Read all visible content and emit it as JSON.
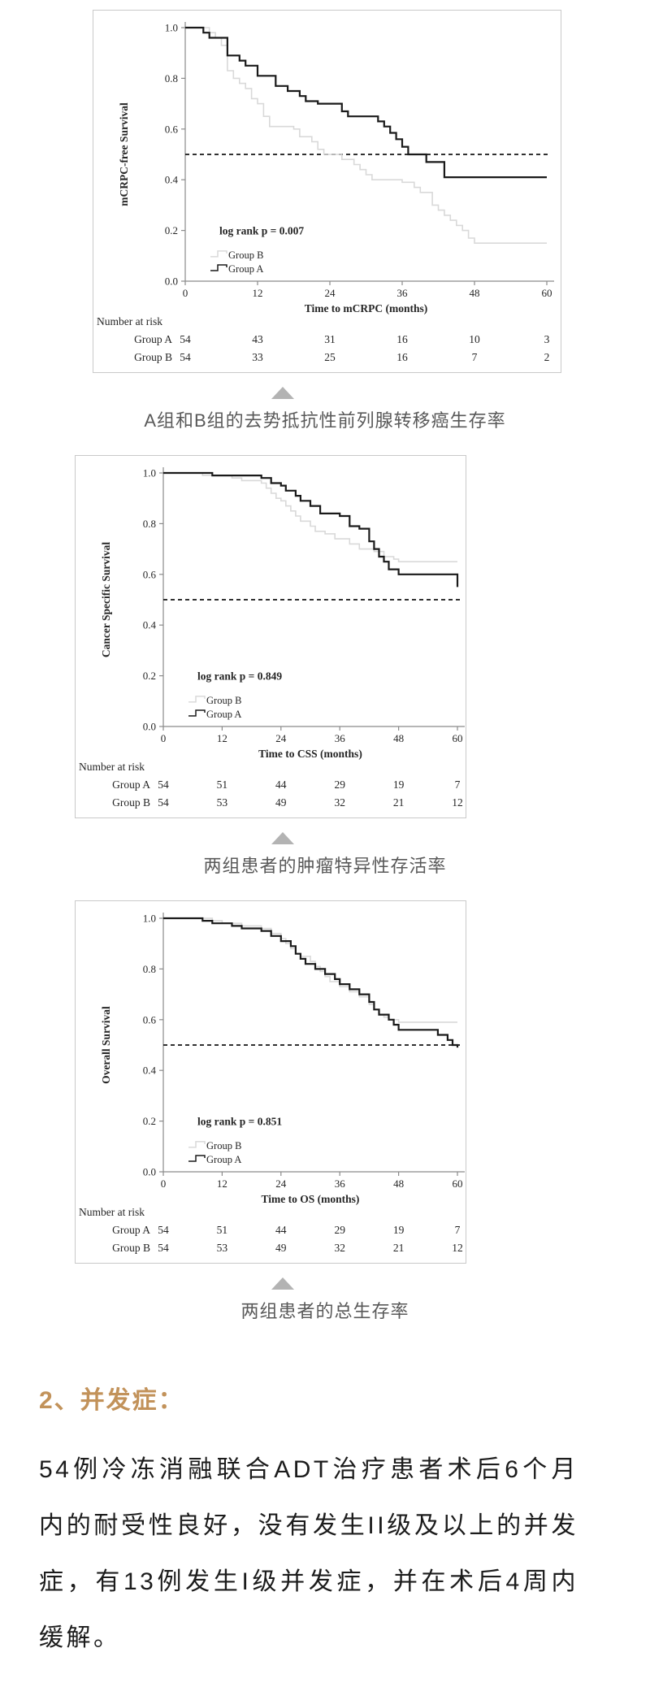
{
  "figures": [
    {
      "caption": "A组和B组的去势抵抗性前列腺转移癌生存率"
    },
    {
      "caption": "两组患者的肿瘤特异性存活率"
    },
    {
      "caption": "两组患者的总生存率"
    }
  ],
  "section": {
    "heading": "2、并发症：",
    "paragraph": "54例冷冻消融联合ADT治疗患者术后6个月内的耐受性良好，没有发生II级及以上的并发症，有13例发生I级并发症，并在术后4周内缓解。"
  },
  "colors": {
    "accent_heading": "#c2925a",
    "group_a_line": "#1a1a1a",
    "group_b_line": "#d9d9d9",
    "caption_text": "#595959",
    "triangle": "#b3b3b3",
    "figure_border": "#c9c9c9"
  },
  "chart_data": [
    {
      "type": "line",
      "variant": "kaplan-meier-step",
      "ylabel": "mCRPC-free Survival",
      "xlabel": "Time to mCRPC (months)",
      "annotation": "log rank p = 0.007",
      "xlim": [
        0,
        60
      ],
      "ylim": [
        0,
        1
      ],
      "xticks": [
        0,
        12,
        24,
        36,
        48,
        60
      ],
      "yticks": [
        "0.0",
        "0.2",
        "0.4",
        "0.6",
        "0.8",
        "1.0"
      ],
      "reference_line_y": 0.5,
      "grid": false,
      "legend_position": "lower-left",
      "legend": [
        {
          "label": "Group B",
          "color": "#d9d9d9"
        },
        {
          "label": "Group A",
          "color": "#1a1a1a"
        }
      ],
      "series": [
        {
          "name": "Group B",
          "color": "#d9d9d9",
          "step_points": [
            [
              0,
              1.0
            ],
            [
              4,
              0.98
            ],
            [
              5,
              0.96
            ],
            [
              6,
              0.93
            ],
            [
              7,
              0.83
            ],
            [
              8,
              0.8
            ],
            [
              9,
              0.78
            ],
            [
              10,
              0.76
            ],
            [
              11,
              0.72
            ],
            [
              12,
              0.7
            ],
            [
              13,
              0.65
            ],
            [
              14,
              0.61
            ],
            [
              18,
              0.6
            ],
            [
              19,
              0.57
            ],
            [
              21,
              0.55
            ],
            [
              22,
              0.52
            ],
            [
              23,
              0.5
            ],
            [
              26,
              0.48
            ],
            [
              28,
              0.46
            ],
            [
              29,
              0.44
            ],
            [
              30,
              0.42
            ],
            [
              31,
              0.4
            ],
            [
              36,
              0.39
            ],
            [
              38,
              0.37
            ],
            [
              39,
              0.35
            ],
            [
              41,
              0.3
            ],
            [
              42,
              0.28
            ],
            [
              43,
              0.26
            ],
            [
              44,
              0.24
            ],
            [
              45,
              0.22
            ],
            [
              46,
              0.2
            ],
            [
              47,
              0.17
            ],
            [
              48,
              0.15
            ],
            [
              60,
              0.15
            ]
          ]
        },
        {
          "name": "Group A",
          "color": "#1a1a1a",
          "step_points": [
            [
              0,
              1.0
            ],
            [
              3,
              0.98
            ],
            [
              4,
              0.96
            ],
            [
              7,
              0.89
            ],
            [
              9,
              0.87
            ],
            [
              10,
              0.85
            ],
            [
              12,
              0.81
            ],
            [
              15,
              0.77
            ],
            [
              17,
              0.75
            ],
            [
              19,
              0.73
            ],
            [
              20,
              0.71
            ],
            [
              22,
              0.7
            ],
            [
              26,
              0.67
            ],
            [
              27,
              0.65
            ],
            [
              32,
              0.63
            ],
            [
              33,
              0.61
            ],
            [
              34,
              0.585
            ],
            [
              35,
              0.56
            ],
            [
              36,
              0.53
            ],
            [
              37,
              0.5
            ],
            [
              40,
              0.47
            ],
            [
              43,
              0.41
            ],
            [
              60,
              0.41
            ]
          ]
        }
      ],
      "number_at_risk": {
        "label": "Number at risk",
        "rows": [
          {
            "name": "Group A",
            "values": [
              54,
              43,
              31,
              16,
              10,
              3
            ]
          },
          {
            "name": "Group B",
            "values": [
              54,
              33,
              25,
              16,
              7,
              2
            ]
          }
        ]
      }
    },
    {
      "type": "line",
      "variant": "kaplan-meier-step",
      "ylabel": "Cancer Specific Survival",
      "xlabel": "Time to CSS (months)",
      "annotation": "log rank p = 0.849",
      "xlim": [
        0,
        60
      ],
      "ylim": [
        0,
        1
      ],
      "xticks": [
        0,
        12,
        24,
        36,
        48,
        60
      ],
      "yticks": [
        "0.0",
        "0.2",
        "0.4",
        "0.6",
        "0.8",
        "1.0"
      ],
      "reference_line_y": 0.5,
      "grid": false,
      "legend_position": "lower-left",
      "legend": [
        {
          "label": "Group B",
          "color": "#d9d9d9"
        },
        {
          "label": "Group A",
          "color": "#1a1a1a"
        }
      ],
      "series": [
        {
          "name": "Group B",
          "color": "#d9d9d9",
          "step_points": [
            [
              0,
              1.0
            ],
            [
              8,
              0.99
            ],
            [
              14,
              0.98
            ],
            [
              16,
              0.97
            ],
            [
              20,
              0.96
            ],
            [
              21,
              0.94
            ],
            [
              22,
              0.92
            ],
            [
              23,
              0.9
            ],
            [
              24,
              0.89
            ],
            [
              25,
              0.87
            ],
            [
              26,
              0.85
            ],
            [
              27,
              0.83
            ],
            [
              28,
              0.81
            ],
            [
              30,
              0.79
            ],
            [
              31,
              0.77
            ],
            [
              33,
              0.76
            ],
            [
              35,
              0.74
            ],
            [
              38,
              0.72
            ],
            [
              40,
              0.7
            ],
            [
              43,
              0.69
            ],
            [
              45,
              0.67
            ],
            [
              47,
              0.66
            ],
            [
              48,
              0.65
            ],
            [
              60,
              0.65
            ]
          ]
        },
        {
          "name": "Group A",
          "color": "#1a1a1a",
          "step_points": [
            [
              0,
              1.0
            ],
            [
              10,
              0.99
            ],
            [
              20,
              0.98
            ],
            [
              22,
              0.96
            ],
            [
              24,
              0.95
            ],
            [
              25,
              0.93
            ],
            [
              27,
              0.91
            ],
            [
              28,
              0.89
            ],
            [
              30,
              0.87
            ],
            [
              32,
              0.84
            ],
            [
              36,
              0.83
            ],
            [
              38,
              0.79
            ],
            [
              40,
              0.78
            ],
            [
              42,
              0.73
            ],
            [
              43,
              0.7
            ],
            [
              44,
              0.67
            ],
            [
              45,
              0.65
            ],
            [
              46,
              0.62
            ],
            [
              48,
              0.6
            ],
            [
              59,
              0.6
            ],
            [
              60,
              0.55
            ]
          ]
        }
      ],
      "number_at_risk": {
        "label": "Number at risk",
        "rows": [
          {
            "name": "Group A",
            "values": [
              54,
              51,
              44,
              29,
              19,
              7
            ]
          },
          {
            "name": "Group B",
            "values": [
              54,
              53,
              49,
              32,
              21,
              12
            ]
          }
        ]
      }
    },
    {
      "type": "line",
      "variant": "kaplan-meier-step",
      "ylabel": "Overall Survival",
      "xlabel": "Time to OS (months)",
      "annotation": "log rank p = 0.851",
      "xlim": [
        0,
        60
      ],
      "ylim": [
        0,
        1
      ],
      "xticks": [
        0,
        12,
        24,
        36,
        48,
        60
      ],
      "yticks": [
        "0.0",
        "0.2",
        "0.4",
        "0.6",
        "0.8",
        "1.0"
      ],
      "reference_line_y": 0.5,
      "grid": false,
      "legend_position": "lower-left",
      "legend": [
        {
          "label": "Group B",
          "color": "#d9d9d9"
        },
        {
          "label": "Group A",
          "color": "#1a1a1a"
        }
      ],
      "series": [
        {
          "name": "Group B",
          "color": "#d9d9d9",
          "step_points": [
            [
              0,
              1.0
            ],
            [
              10,
              0.99
            ],
            [
              12,
              0.98
            ],
            [
              16,
              0.97
            ],
            [
              20,
              0.96
            ],
            [
              22,
              0.94
            ],
            [
              24,
              0.92
            ],
            [
              25,
              0.9
            ],
            [
              26,
              0.88
            ],
            [
              27,
              0.86
            ],
            [
              28,
              0.85
            ],
            [
              30,
              0.83
            ],
            [
              31,
              0.81
            ],
            [
              32,
              0.79
            ],
            [
              33,
              0.77
            ],
            [
              34,
              0.75
            ],
            [
              36,
              0.73
            ],
            [
              38,
              0.71
            ],
            [
              40,
              0.69
            ],
            [
              42,
              0.66
            ],
            [
              43,
              0.64
            ],
            [
              44,
              0.62
            ],
            [
              45,
              0.61
            ],
            [
              46,
              0.6
            ],
            [
              48,
              0.59
            ],
            [
              60,
              0.59
            ]
          ]
        },
        {
          "name": "Group A",
          "color": "#1a1a1a",
          "step_points": [
            [
              0,
              1.0
            ],
            [
              8,
              0.99
            ],
            [
              10,
              0.98
            ],
            [
              14,
              0.97
            ],
            [
              16,
              0.96
            ],
            [
              20,
              0.95
            ],
            [
              22,
              0.93
            ],
            [
              24,
              0.91
            ],
            [
              26,
              0.89
            ],
            [
              27,
              0.86
            ],
            [
              28,
              0.84
            ],
            [
              29,
              0.82
            ],
            [
              31,
              0.8
            ],
            [
              33,
              0.78
            ],
            [
              35,
              0.76
            ],
            [
              36,
              0.74
            ],
            [
              38,
              0.72
            ],
            [
              40,
              0.7
            ],
            [
              42,
              0.67
            ],
            [
              43,
              0.64
            ],
            [
              44,
              0.62
            ],
            [
              46,
              0.6
            ],
            [
              47,
              0.58
            ],
            [
              48,
              0.56
            ],
            [
              56,
              0.54
            ],
            [
              58,
              0.52
            ],
            [
              59,
              0.5
            ],
            [
              60,
              0.49
            ]
          ]
        }
      ],
      "number_at_risk": {
        "label": "Number at risk",
        "rows": [
          {
            "name": "Group A",
            "values": [
              54,
              51,
              44,
              29,
              19,
              7
            ]
          },
          {
            "name": "Group B",
            "values": [
              54,
              53,
              49,
              32,
              21,
              12
            ]
          }
        ]
      }
    }
  ]
}
